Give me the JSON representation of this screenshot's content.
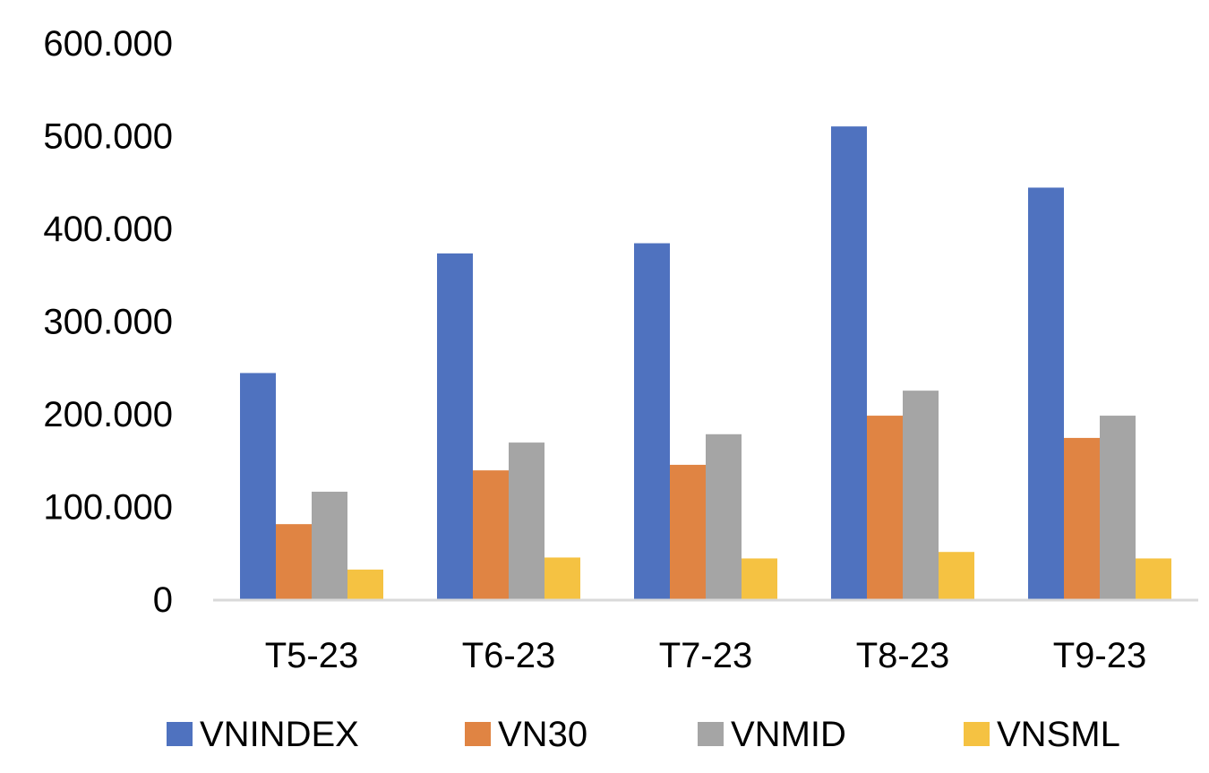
{
  "chart_data": {
    "type": "bar",
    "title": "",
    "xlabel": "",
    "ylabel": "",
    "categories": [
      "T5-23",
      "T6-23",
      "T7-23",
      "T8-23",
      "T9-23"
    ],
    "series": [
      {
        "name": "VNINDEX",
        "color": "#4F72BF",
        "values": [
          244000,
          373000,
          384000,
          510000,
          444000
        ]
      },
      {
        "name": "VN30",
        "color": "#E08443",
        "values": [
          81000,
          139000,
          145000,
          198000,
          174000
        ]
      },
      {
        "name": "VNMID",
        "color": "#A5A5A5",
        "values": [
          116000,
          169000,
          178000,
          225000,
          198000
        ]
      },
      {
        "name": "VNSML",
        "color": "#F5C242",
        "values": [
          32000,
          45000,
          44000,
          51000,
          44000
        ]
      }
    ],
    "ylim": [
      0,
      600000
    ],
    "yticks": [
      0,
      100000,
      200000,
      300000,
      400000,
      500000,
      600000
    ],
    "ytick_labels": [
      "0",
      "100.000",
      "200.000",
      "300.000",
      "400.000",
      "500.000",
      "600.000"
    ],
    "grid": false,
    "legend_position": "bottom",
    "axis_color": "#D9D9D9"
  }
}
